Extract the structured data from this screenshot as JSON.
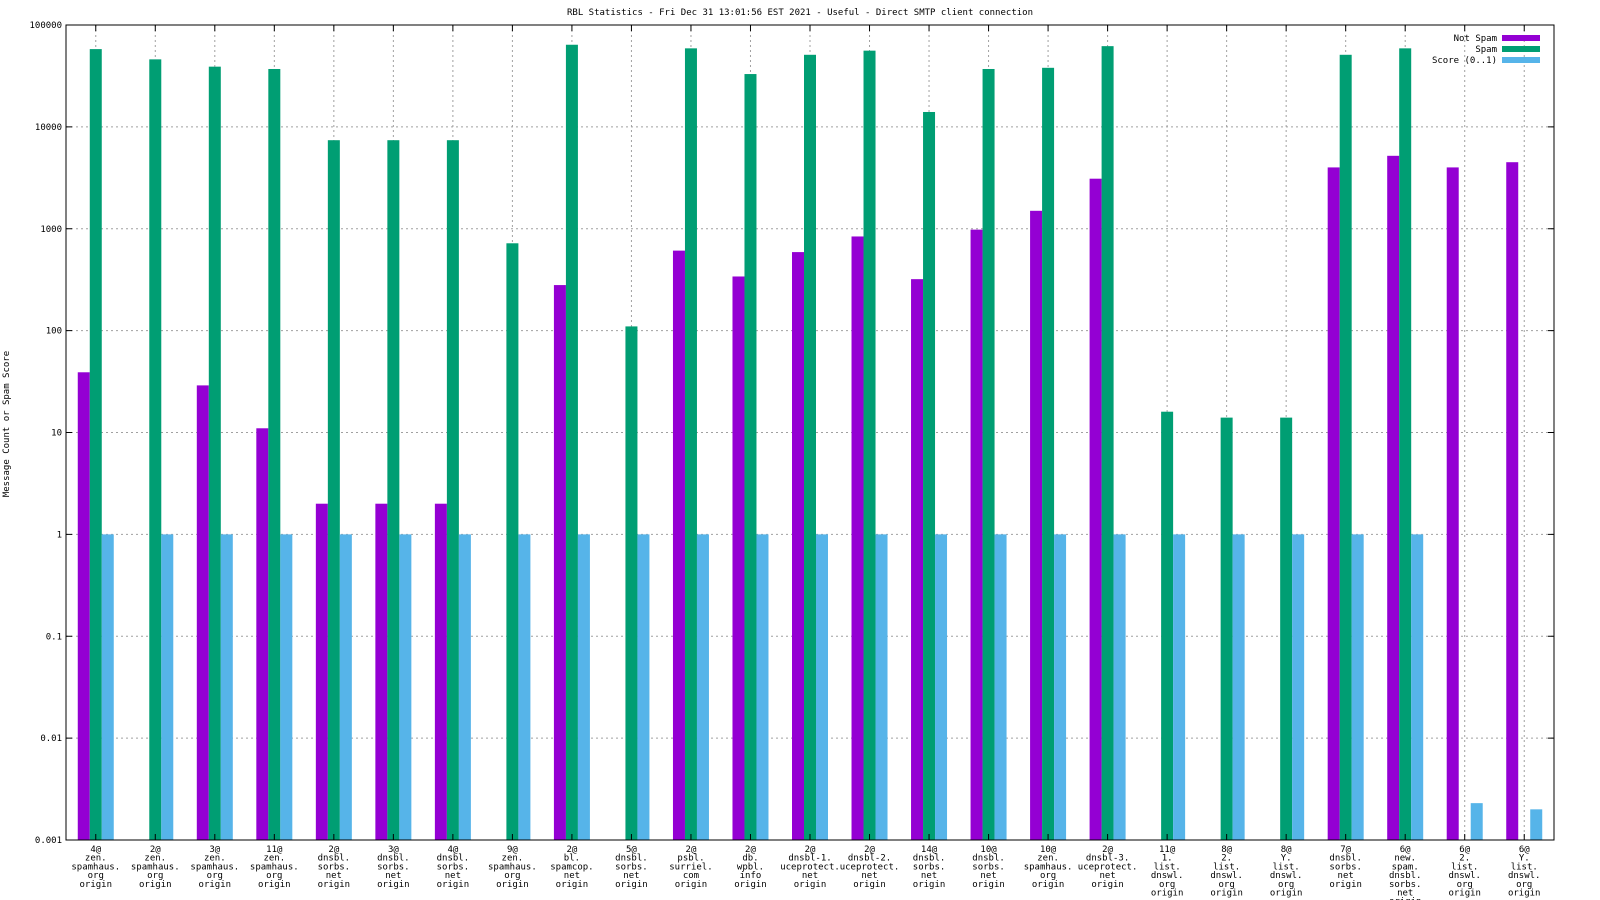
{
  "chart_data": {
    "type": "bar",
    "title": "RBL Statistics - Fri Dec 31 13:01:56 EST 2021 - Useful - Direct SMTP client connection",
    "xlabel": "",
    "ylabel": "Message Count or Spam Score",
    "yscale": "log",
    "ylim": [
      0.001,
      100000
    ],
    "grid": true,
    "legend_position": "top-right",
    "y_ticks": [
      "0.001",
      "0.01",
      "0.1",
      "1",
      "10",
      "100",
      "1000",
      "10000",
      "100000"
    ],
    "categories": [
      [
        "4@",
        "zen.",
        "spamhaus.",
        "org",
        "origin"
      ],
      [
        "2@",
        "zen.",
        "spamhaus.",
        "org",
        "origin"
      ],
      [
        "3@",
        "zen.",
        "spamhaus.",
        "org",
        "origin"
      ],
      [
        "11@",
        "zen.",
        "spamhaus.",
        "org",
        "origin"
      ],
      [
        "2@",
        "dnsbl.",
        "sorbs.",
        "net",
        "origin"
      ],
      [
        "3@",
        "dnsbl.",
        "sorbs.",
        "net",
        "origin"
      ],
      [
        "4@",
        "dnsbl.",
        "sorbs.",
        "net",
        "origin"
      ],
      [
        "9@",
        "zen.",
        "spamhaus.",
        "org",
        "origin"
      ],
      [
        "2@",
        "bl.",
        "spamcop.",
        "net",
        "origin"
      ],
      [
        "5@",
        "dnsbl.",
        "sorbs.",
        "net",
        "origin"
      ],
      [
        "2@",
        "psbl.",
        "surriel.",
        "com",
        "origin"
      ],
      [
        "2@",
        "db.",
        "wpbl.",
        "info",
        "origin"
      ],
      [
        "2@",
        "dnsbl-1.",
        "uceprotect.",
        "net",
        "origin"
      ],
      [
        "2@",
        "dnsbl-2.",
        "uceprotect.",
        "net",
        "origin"
      ],
      [
        "14@",
        "dnsbl.",
        "sorbs.",
        "net",
        "origin"
      ],
      [
        "10@",
        "dnsbl.",
        "sorbs.",
        "net",
        "origin"
      ],
      [
        "10@",
        "zen.",
        "spamhaus.",
        "org",
        "origin"
      ],
      [
        "2@",
        "dnsbl-3.",
        "uceprotect.",
        "net",
        "origin"
      ],
      [
        "11@",
        "1.",
        "list.",
        "dnswl.",
        "org",
        "origin"
      ],
      [
        "8@",
        "2.",
        "list.",
        "dnswl.",
        "org",
        "origin"
      ],
      [
        "8@",
        "Y.",
        "list.",
        "dnswl.",
        "org",
        "origin"
      ],
      [
        "7@",
        "dnsbl.",
        "sorbs.",
        "net",
        "origin"
      ],
      [
        "6@",
        "new.",
        "spam.",
        "dnsbl.",
        "sorbs.",
        "net",
        "origin"
      ],
      [
        "6@",
        "2.",
        "list.",
        "dnswl.",
        "org",
        "origin"
      ],
      [
        "6@",
        "Y.",
        "list.",
        "dnswl.",
        "org",
        "origin"
      ]
    ],
    "series": [
      {
        "name": "Not Spam",
        "color": "#9400d3",
        "values": [
          39,
          null,
          29,
          11,
          2,
          2,
          2,
          null,
          280,
          null,
          610,
          340,
          590,
          840,
          320,
          980,
          1500,
          3100,
          null,
          null,
          null,
          4000,
          5200,
          4000,
          4500
        ]
      },
      {
        "name": "Spam",
        "color": "#009e73",
        "values": [
          58000,
          46000,
          39000,
          37000,
          7400,
          7400,
          7400,
          720,
          64000,
          110,
          59000,
          33000,
          51000,
          56000,
          14000,
          37000,
          38000,
          62000,
          16,
          14,
          14,
          51000,
          59000,
          null,
          null
        ]
      },
      {
        "name": "Score (0..1)",
        "color": "#56b4e9",
        "values": [
          1,
          1,
          1,
          1,
          1,
          1,
          1,
          1,
          1,
          1,
          1,
          1,
          1,
          1,
          1,
          1,
          1,
          1,
          1,
          1,
          1,
          1,
          1,
          0.0023,
          0.002
        ]
      }
    ]
  }
}
